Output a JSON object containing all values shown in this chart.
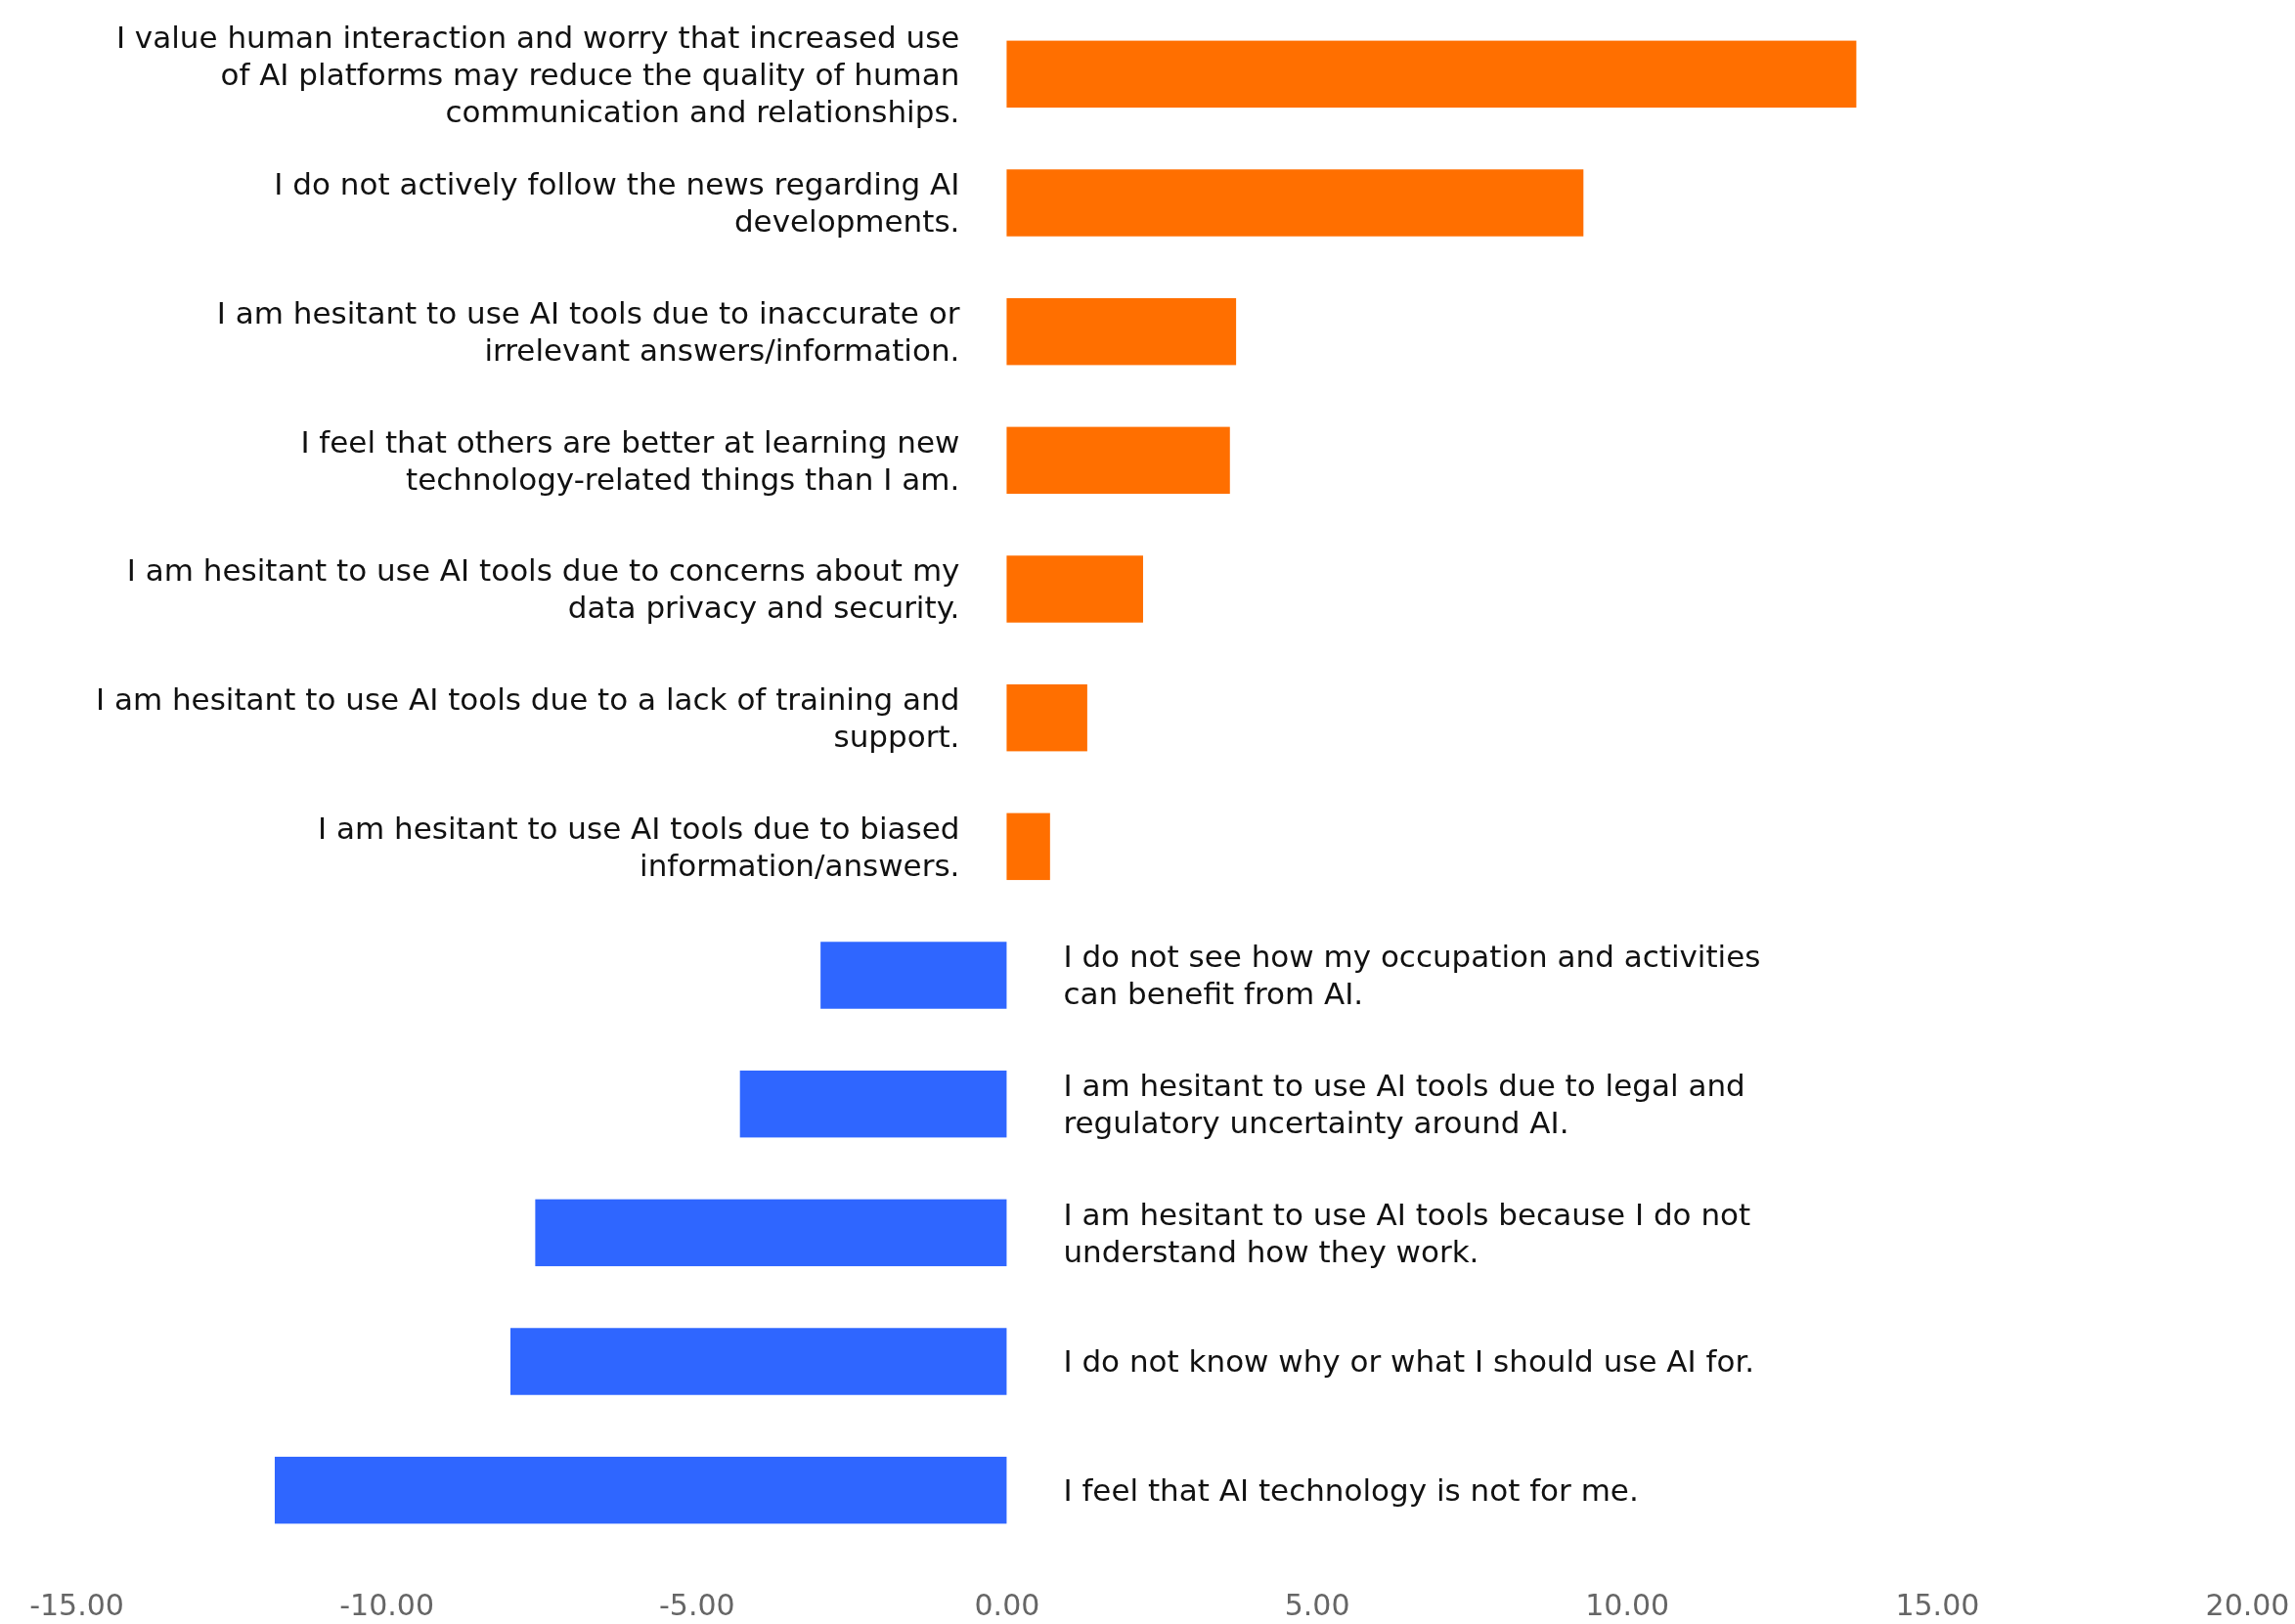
{
  "chart_data": {
    "type": "bar",
    "orientation": "horizontal",
    "categories": [
      "I value human interaction and worry that increased use of AI platforms may reduce the quality of human communication and relationships.",
      "I do not actively follow the news regarding AI developments.",
      "I am hesitant to use AI tools due to inaccurate or irrelevant answers/information.",
      "I feel that others are better at learning new technology-related things than I am.",
      "I am hesitant to use AI tools due to concerns about my data privacy and security.",
      "I am hesitant to use AI tools due to a lack of training and support.",
      "I am hesitant to use AI tools due to biased information/answers.",
      "I do not see how my occupation and activities can benefit from AI.",
      "I am hesitant to use AI tools due to legal and regulatory uncertainty around AI.",
      "I am hesitant to use AI tools because I do not understand how they work.",
      "I do not know why or what I should use AI for.",
      "I feel that AI technology is not for me."
    ],
    "values": [
      13.7,
      9.3,
      3.7,
      3.6,
      2.2,
      1.3,
      0.7,
      -3.0,
      -4.3,
      -7.6,
      -8.0,
      -11.8
    ],
    "colors": [
      "#ff6f00",
      "#ff6f00",
      "#ff6f00",
      "#ff6f00",
      "#ff6f00",
      "#ff6f00",
      "#ff6f00",
      "#2f66ff",
      "#2f66ff",
      "#2f66ff",
      "#2f66ff",
      "#2f66ff"
    ],
    "xlim": [
      -15,
      20
    ],
    "xticks": [
      {
        "value": -15,
        "label": "-15.00"
      },
      {
        "value": -10,
        "label": "-10.00"
      },
      {
        "value": -5,
        "label": "-5.00"
      },
      {
        "value": 0,
        "label": "0.00"
      },
      {
        "value": 5,
        "label": "5.00"
      },
      {
        "value": 10,
        "label": "10.00"
      },
      {
        "value": 15,
        "label": "15.00"
      },
      {
        "value": 20,
        "label": "20.00"
      }
    ],
    "grid": false
  }
}
